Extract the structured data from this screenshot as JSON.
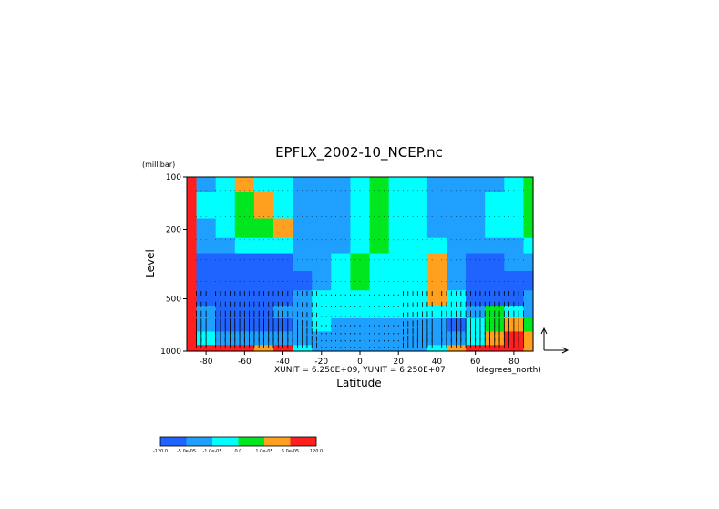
{
  "chart_data": {
    "type": "heatmap",
    "title": "EPFLX_2002-10_NCEP.nc",
    "xlabel": "Latitude",
    "ylabel": "Level",
    "yunit": "(millibar)",
    "xunit_label": "(degrees_north)",
    "vector_scale_text": "XUNIT = 6.250E+09, YUNIT = 6.250E+07",
    "x_ticks": [
      "-80",
      "-60",
      "-40",
      "-20",
      "0",
      "20",
      "40",
      "60",
      "80"
    ],
    "x_tick_values": [
      -80,
      -60,
      -40,
      -20,
      0,
      20,
      40,
      60,
      80
    ],
    "y_ticks": [
      "100",
      "200",
      "500",
      "1000"
    ],
    "y_tick_values": [
      100,
      200,
      500,
      1000
    ],
    "xlim": [
      -90,
      90
    ],
    "ylim": [
      1000,
      100
    ],
    "yscale": "log",
    "grid": false,
    "colorbar": {
      "colors": [
        "#1f64ff",
        "#1fa0ff",
        "#00ffff",
        "#00e61f",
        "#ffa01f",
        "#ff1f1f"
      ],
      "labels": [
        "-120.0",
        "-5.0e-05",
        "-1.0e-05",
        "0.0",
        "1.0e-05",
        "5.0e-05",
        "120.0"
      ]
    },
    "field": {
      "description": "contoured EP flux divergence by latitude and level",
      "levels": [
        100,
        150,
        200,
        250,
        300,
        400,
        500,
        600,
        700,
        850,
        1000
      ],
      "latitudes": [
        -90,
        -80,
        -70,
        -60,
        -50,
        -40,
        -30,
        -20,
        -10,
        0,
        10,
        20,
        30,
        40,
        50,
        60,
        70,
        80,
        90
      ],
      "classes": [
        [
          5,
          1,
          2,
          4,
          2,
          2,
          1,
          1,
          1,
          2,
          3,
          2,
          2,
          1,
          1,
          1,
          1,
          2,
          3
        ],
        [
          5,
          2,
          2,
          3,
          4,
          2,
          1,
          1,
          1,
          2,
          3,
          2,
          2,
          1,
          1,
          1,
          2,
          2,
          3
        ],
        [
          5,
          1,
          2,
          3,
          3,
          4,
          1,
          1,
          1,
          2,
          3,
          2,
          2,
          1,
          1,
          1,
          2,
          2,
          3
        ],
        [
          5,
          1,
          1,
          2,
          2,
          2,
          1,
          1,
          1,
          2,
          3,
          2,
          2,
          2,
          1,
          1,
          1,
          1,
          2
        ],
        [
          5,
          0,
          0,
          0,
          0,
          0,
          1,
          1,
          2,
          3,
          2,
          2,
          2,
          4,
          1,
          0,
          0,
          1,
          1
        ],
        [
          5,
          0,
          0,
          0,
          0,
          0,
          0,
          1,
          2,
          3,
          2,
          2,
          2,
          4,
          1,
          0,
          0,
          0,
          0
        ],
        [
          5,
          0,
          0,
          0,
          0,
          0,
          1,
          2,
          2,
          2,
          2,
          2,
          2,
          4,
          2,
          0,
          0,
          0,
          1
        ],
        [
          5,
          1,
          0,
          0,
          0,
          1,
          1,
          2,
          2,
          2,
          2,
          2,
          2,
          2,
          2,
          1,
          3,
          2,
          1
        ],
        [
          5,
          1,
          0,
          0,
          0,
          0,
          1,
          2,
          1,
          1,
          1,
          1,
          1,
          1,
          0,
          2,
          3,
          4,
          3
        ],
        [
          5,
          2,
          1,
          1,
          1,
          1,
          1,
          1,
          1,
          1,
          1,
          1,
          1,
          1,
          1,
          2,
          4,
          5,
          4
        ],
        [
          5,
          5,
          5,
          5,
          4,
          5,
          2,
          1,
          1,
          1,
          1,
          1,
          1,
          2,
          4,
          5,
          5,
          5,
          4
        ]
      ]
    },
    "vectors": "EP flux arrows on latitude-level grid, strongest upward arrows near 1000-500 mb in both hemispheres"
  }
}
